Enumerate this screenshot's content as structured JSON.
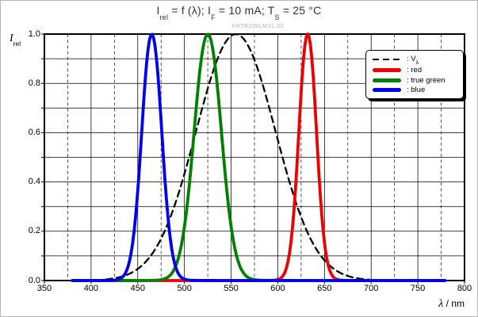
{
  "frame": {
    "background": "#ffffff",
    "border_color": "#b5b5b5"
  },
  "title": {
    "segments": [
      {
        "text": "I",
        "sub": false
      },
      {
        "text": "rel",
        "sub": true
      },
      {
        "text": " = f (λ); I",
        "sub": false
      },
      {
        "text": "F",
        "sub": true
      },
      {
        "text": " = 10 mA; T",
        "sub": false
      },
      {
        "text": "S",
        "sub": true
      },
      {
        "text": " = 25 °C",
        "sub": false
      }
    ]
  },
  "watermark": {
    "text": "KRTBDWLM31.32",
    "color": "#b3b3b3"
  },
  "y_axis": {
    "label_main": "I",
    "label_sub": "rel",
    "tick_labels": [
      "1.0",
      "0.8",
      "0.6",
      "0.4",
      "0.2",
      "0.0"
    ],
    "tick_values": [
      1.0,
      0.8,
      0.6,
      0.4,
      0.2,
      0.0
    ]
  },
  "x_axis": {
    "label_symbol": "λ",
    "label_rest": " / nm",
    "tick_labels": [
      "350",
      "400",
      "450",
      "500",
      "550",
      "600",
      "650",
      "700",
      "750",
      "800"
    ],
    "tick_values": [
      350,
      400,
      450,
      500,
      550,
      600,
      650,
      700,
      750,
      800
    ]
  },
  "legend": {
    "items": [
      {
        "id": "v-lambda",
        "text_prefix": ": V",
        "text_sub": "λ",
        "style": "dashed",
        "color": "#000000"
      },
      {
        "id": "red",
        "text_prefix": ": red",
        "text_sub": "",
        "style": "solid",
        "color": "#ee0000"
      },
      {
        "id": "true-green",
        "text_prefix": ": true green",
        "text_sub": "",
        "style": "solid",
        "color": "#008000"
      },
      {
        "id": "blue",
        "text_prefix": ": blue",
        "text_sub": "",
        "style": "solid",
        "color": "#0000ee"
      }
    ]
  },
  "chart_data": {
    "type": "line",
    "title": "I_rel = f (lambda); I_F = 10 mA; T_S = 25 degC",
    "xlabel": "lambda / nm",
    "ylabel": "I_rel",
    "xlim": [
      350,
      800
    ],
    "ylim": [
      0.0,
      1.0
    ],
    "x_unit": "nm",
    "grid": {
      "h_solid_step": 0.1,
      "v_solid_step": 50,
      "v_dashed_step": 25,
      "v_dashed_offset": 375
    },
    "series": [
      {
        "name": "V_lambda (eye sensitivity)",
        "color": "#000000",
        "style": "dashed",
        "shape": "gaussian",
        "peak_nm": 555,
        "sigma_nm": 42.5,
        "range_nm": [
          416,
          712
        ],
        "points": [
          [
            430,
            0.01
          ],
          [
            450,
            0.045
          ],
          [
            470,
            0.13
          ],
          [
            490,
            0.3
          ],
          [
            510,
            0.56
          ],
          [
            530,
            0.84
          ],
          [
            555,
            1.0
          ],
          [
            575,
            0.9
          ],
          [
            590,
            0.72
          ],
          [
            610,
            0.43
          ],
          [
            630,
            0.2
          ],
          [
            650,
            0.08
          ],
          [
            670,
            0.025
          ],
          [
            690,
            0.007
          ]
        ]
      },
      {
        "name": "red",
        "color": "#ee0000",
        "style": "solid",
        "shape": "pseudo_voigt",
        "peak_nm": 632,
        "fwhm_nm": 22,
        "lorentz_fraction": 0.1,
        "range_nm": [
          380,
          780
        ],
        "points": [
          [
            600,
            0.02
          ],
          [
            610,
            0.06
          ],
          [
            616,
            0.23
          ],
          [
            621,
            0.5
          ],
          [
            632,
            1.0
          ],
          [
            643,
            0.5
          ],
          [
            648,
            0.23
          ],
          [
            654,
            0.06
          ],
          [
            665,
            0.012
          ]
        ]
      },
      {
        "name": "true green",
        "color": "#008000",
        "style": "solid",
        "shape": "pseudo_voigt",
        "peak_nm": 525,
        "fwhm_nm": 34,
        "lorentz_fraction": 0.1,
        "range_nm": [
          380,
          780
        ],
        "points": [
          [
            480,
            0.02
          ],
          [
            490,
            0.05
          ],
          [
            500,
            0.22
          ],
          [
            508,
            0.5
          ],
          [
            525,
            1.0
          ],
          [
            542,
            0.5
          ],
          [
            550,
            0.22
          ],
          [
            560,
            0.05
          ],
          [
            572,
            0.015
          ]
        ]
      },
      {
        "name": "blue",
        "color": "#0000ee",
        "style": "solid",
        "shape": "pseudo_voigt",
        "peak_nm": 465,
        "fwhm_nm": 25,
        "lorentz_fraction": 0.1,
        "range_nm": [
          380,
          780
        ],
        "points": [
          [
            435,
            0.02
          ],
          [
            445,
            0.12
          ],
          [
            453,
            0.5
          ],
          [
            465,
            1.0
          ],
          [
            477,
            0.5
          ],
          [
            487,
            0.12
          ],
          [
            500,
            0.015
          ]
        ]
      }
    ]
  }
}
